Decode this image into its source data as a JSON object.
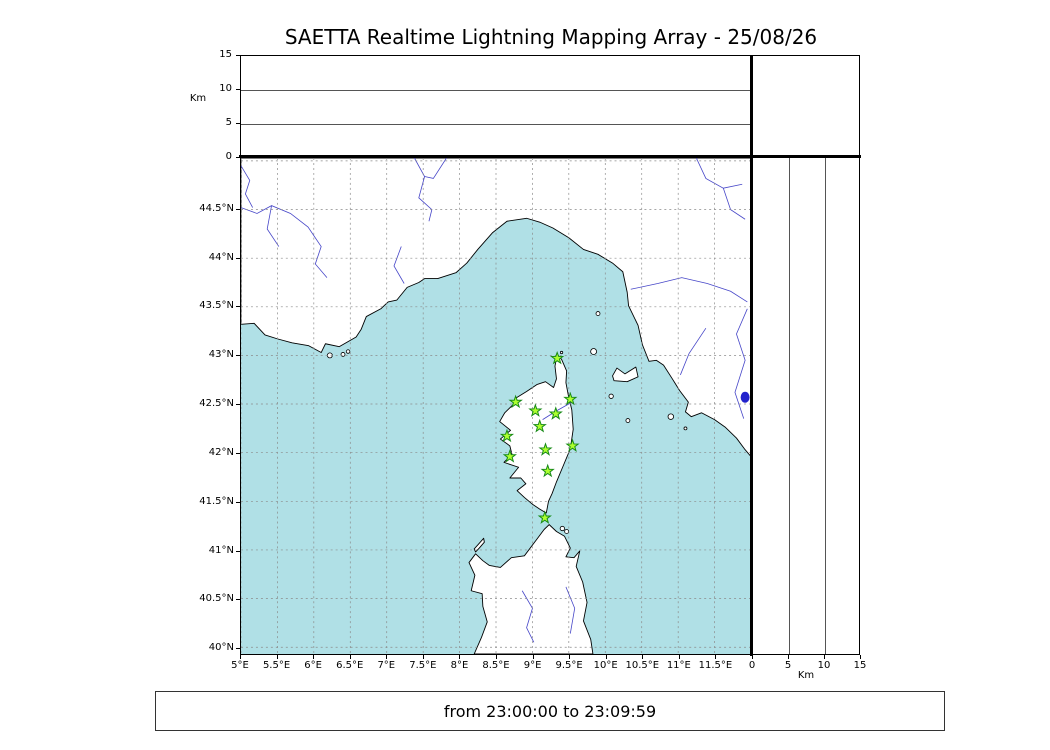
{
  "title": "SAETTA Realtime Lightning Mapping Array - 25/08/26",
  "time_range": "from 23:00:00 to 23:09:59",
  "colors": {
    "sea": "#b0e0e6",
    "land": "#ffffff",
    "coast": "#000000",
    "river": "#4646c8",
    "lake": "#2222cc",
    "grid": "#8a8a8a",
    "panel_grid": "#555555",
    "station_fill": "#adff2f",
    "station_stroke": "#178a17"
  },
  "altitude_axis": {
    "label": "Km",
    "max": 15,
    "ticks": [
      {
        "v": 0,
        "t": "0"
      },
      {
        "v": 5,
        "t": "5"
      },
      {
        "v": 10,
        "t": "10"
      },
      {
        "v": 15,
        "t": "15"
      }
    ]
  },
  "map": {
    "lon_min": 5.0,
    "lon_max": 12.0,
    "lat_min": 39.93,
    "lat_max": 45.03,
    "grid_step_deg": 0.5,
    "lat_tick_labels": [
      {
        "v": 44.5,
        "t": "44.5°N"
      },
      {
        "v": 44.0,
        "t": "44°N"
      },
      {
        "v": 43.5,
        "t": "43.5°N"
      },
      {
        "v": 43.0,
        "t": "43°N"
      },
      {
        "v": 42.5,
        "t": "42.5°N"
      },
      {
        "v": 42.0,
        "t": "42°N"
      },
      {
        "v": 41.5,
        "t": "41.5°N"
      },
      {
        "v": 41.0,
        "t": "41°N"
      },
      {
        "v": 40.5,
        "t": "40.5°N"
      },
      {
        "v": 40.0,
        "t": "40°N"
      }
    ],
    "lon_tick_labels": [
      {
        "v": 5.0,
        "t": "5°E"
      },
      {
        "v": 5.5,
        "t": "5.5°E"
      },
      {
        "v": 6.0,
        "t": "6°E"
      },
      {
        "v": 6.5,
        "t": "6.5°E"
      },
      {
        "v": 7.0,
        "t": "7°E"
      },
      {
        "v": 7.5,
        "t": "7.5°E"
      },
      {
        "v": 8.0,
        "t": "8°E"
      },
      {
        "v": 8.5,
        "t": "8.5°E"
      },
      {
        "v": 9.0,
        "t": "9°E"
      },
      {
        "v": 9.5,
        "t": "9.5°E"
      },
      {
        "v": 10.0,
        "t": "10°E"
      },
      {
        "v": 10.5,
        "t": "10.5°E"
      },
      {
        "v": 11.0,
        "t": "11°E"
      },
      {
        "v": 11.5,
        "t": "11.5°E"
      }
    ]
  },
  "chart_data": {
    "type": "scatter",
    "title": "SAETTA Realtime Lightning Mapping Array - 25/08/26",
    "time_window": "from 23:00:00 to 23:09:59",
    "map_extent": {
      "lon_min": 5.0,
      "lon_max": 12.0,
      "lat_min": 39.93,
      "lat_max": 45.03
    },
    "altitude_axis_km": {
      "min": 0,
      "max": 15,
      "ticks": [
        0,
        5,
        10,
        15
      ]
    },
    "grid": "0.5-degree dashed graticule",
    "legend_position": "none",
    "series": [
      {
        "name": "saetta-stations",
        "marker": "green-star",
        "points": [
          {
            "lon": 9.34,
            "lat": 42.97
          },
          {
            "lon": 8.77,
            "lat": 42.52
          },
          {
            "lon": 9.04,
            "lat": 42.43
          },
          {
            "lon": 9.32,
            "lat": 42.4
          },
          {
            "lon": 9.52,
            "lat": 42.55
          },
          {
            "lon": 9.1,
            "lat": 42.27
          },
          {
            "lon": 8.65,
            "lat": 42.17
          },
          {
            "lon": 9.55,
            "lat": 42.07
          },
          {
            "lon": 8.69,
            "lat": 41.96
          },
          {
            "lon": 9.18,
            "lat": 42.03
          },
          {
            "lon": 9.21,
            "lat": 41.81
          },
          {
            "lon": 9.17,
            "lat": 41.33
          }
        ]
      },
      {
        "name": "lightning-sources",
        "marker": "dot",
        "points": []
      }
    ]
  }
}
